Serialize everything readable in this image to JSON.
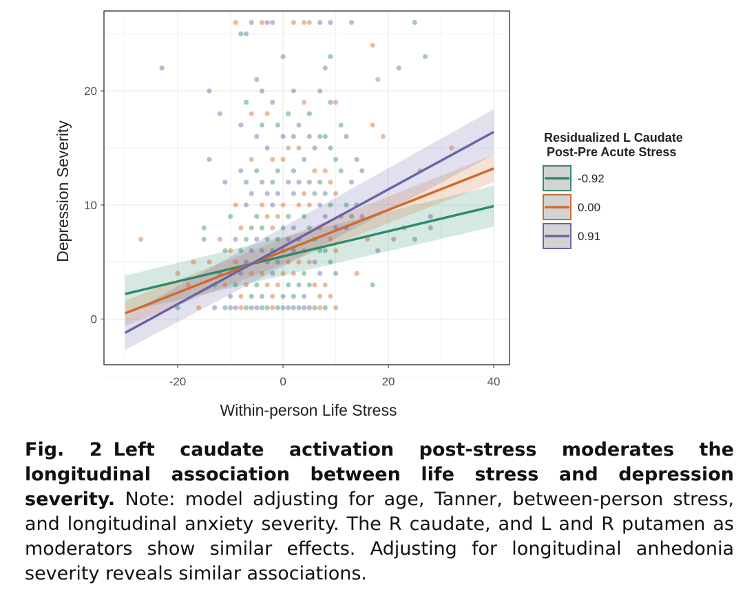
{
  "chart_data": {
    "type": "scatter",
    "xlabel": "Within-person Life Stress",
    "ylabel": "Depression Severity",
    "xlim": [
      -34,
      43
    ],
    "ylim": [
      -4,
      27
    ],
    "xticks": [
      -20,
      0,
      20,
      40
    ],
    "yticks": [
      0,
      10,
      20
    ],
    "grid": true,
    "legend": {
      "title_line1": "Residualized L Caudate",
      "title_line2": "Post-Pre Acute Stress",
      "placement": "right"
    },
    "series": [
      {
        "name": "-0.92",
        "color": "#2e8b6a",
        "x": [
          -30,
          40
        ],
        "y": [
          2.2,
          9.9
        ],
        "ci_low": [
          0.6,
          8.1
        ],
        "ci_high": [
          3.8,
          11.7
        ]
      },
      {
        "name": "0.00",
        "color": "#d06a2c",
        "x": [
          -30,
          40
        ],
        "y": [
          0.5,
          13.2
        ],
        "ci_low": [
          -0.6,
          12.0
        ],
        "ci_high": [
          1.6,
          14.4
        ]
      },
      {
        "name": "0.91",
        "color": "#6b63a8",
        "x": [
          -30,
          40
        ],
        "y": [
          -1.2,
          16.4
        ],
        "ci_low": [
          -2.7,
          14.4
        ],
        "ci_high": [
          0.3,
          18.4
        ]
      }
    ],
    "points": [
      [
        -27,
        7
      ],
      [
        -23,
        22
      ],
      [
        -20,
        1
      ],
      [
        -20,
        4
      ],
      [
        -18,
        3
      ],
      [
        -17,
        5
      ],
      [
        -16,
        1
      ],
      [
        -15,
        8
      ],
      [
        -15,
        7
      ],
      [
        -14,
        20
      ],
      [
        -14,
        14
      ],
      [
        -14,
        5
      ],
      [
        -13,
        3
      ],
      [
        -13,
        1
      ],
      [
        -12,
        18
      ],
      [
        -12,
        7
      ],
      [
        -12,
        4
      ],
      [
        -11,
        12
      ],
      [
        -11,
        6
      ],
      [
        -11,
        3
      ],
      [
        -11,
        1
      ],
      [
        -10,
        9
      ],
      [
        -10,
        6
      ],
      [
        -10,
        4
      ],
      [
        -10,
        2
      ],
      [
        -10,
        1
      ],
      [
        -9,
        26
      ],
      [
        -9,
        10
      ],
      [
        -9,
        7
      ],
      [
        -9,
        5
      ],
      [
        -9,
        3
      ],
      [
        -9,
        1
      ],
      [
        -8,
        25
      ],
      [
        -8,
        17
      ],
      [
        -8,
        13
      ],
      [
        -8,
        8
      ],
      [
        -8,
        6
      ],
      [
        -8,
        4
      ],
      [
        -8,
        2
      ],
      [
        -8,
        1
      ],
      [
        -7,
        25
      ],
      [
        -7,
        19
      ],
      [
        -7,
        12
      ],
      [
        -7,
        10
      ],
      [
        -7,
        7
      ],
      [
        -7,
        5
      ],
      [
        -7,
        3
      ],
      [
        -7,
        1
      ],
      [
        -6,
        26
      ],
      [
        -6,
        18
      ],
      [
        -6,
        14
      ],
      [
        -6,
        11
      ],
      [
        -6,
        8
      ],
      [
        -6,
        6
      ],
      [
        -6,
        4
      ],
      [
        -6,
        2
      ],
      [
        -6,
        1
      ],
      [
        -5,
        21
      ],
      [
        -5,
        16
      ],
      [
        -5,
        13
      ],
      [
        -5,
        9
      ],
      [
        -5,
        7
      ],
      [
        -5,
        5
      ],
      [
        -5,
        3
      ],
      [
        -5,
        1
      ],
      [
        -4,
        26
      ],
      [
        -4,
        20
      ],
      [
        -4,
        17
      ],
      [
        -4,
        12
      ],
      [
        -4,
        10
      ],
      [
        -4,
        8
      ],
      [
        -4,
        6
      ],
      [
        -4,
        4
      ],
      [
        -4,
        2
      ],
      [
        -4,
        1
      ],
      [
        -3,
        26
      ],
      [
        -3,
        18
      ],
      [
        -3,
        15
      ],
      [
        -3,
        11
      ],
      [
        -3,
        9
      ],
      [
        -3,
        7
      ],
      [
        -3,
        5
      ],
      [
        -3,
        3
      ],
      [
        -3,
        1
      ],
      [
        -2,
        26
      ],
      [
        -2,
        19
      ],
      [
        -2,
        14
      ],
      [
        -2,
        12
      ],
      [
        -2,
        10
      ],
      [
        -2,
        8
      ],
      [
        -2,
        6
      ],
      [
        -2,
        4
      ],
      [
        -2,
        2
      ],
      [
        -2,
        1
      ],
      [
        -1,
        17
      ],
      [
        -1,
        13
      ],
      [
        -1,
        11
      ],
      [
        -1,
        9
      ],
      [
        -1,
        7
      ],
      [
        -1,
        5
      ],
      [
        -1,
        3
      ],
      [
        -1,
        1
      ],
      [
        0,
        23
      ],
      [
        0,
        16
      ],
      [
        0,
        14
      ],
      [
        0,
        10
      ],
      [
        0,
        8
      ],
      [
        0,
        6
      ],
      [
        0,
        4
      ],
      [
        0,
        2
      ],
      [
        0,
        1
      ],
      [
        1,
        18
      ],
      [
        1,
        15
      ],
      [
        1,
        12
      ],
      [
        1,
        9
      ],
      [
        1,
        7
      ],
      [
        1,
        5
      ],
      [
        1,
        3
      ],
      [
        1,
        1
      ],
      [
        2,
        26
      ],
      [
        2,
        20
      ],
      [
        2,
        16
      ],
      [
        2,
        13
      ],
      [
        2,
        11
      ],
      [
        2,
        8
      ],
      [
        2,
        6
      ],
      [
        2,
        4
      ],
      [
        2,
        2
      ],
      [
        2,
        1
      ],
      [
        3,
        17
      ],
      [
        3,
        15
      ],
      [
        3,
        12
      ],
      [
        3,
        10
      ],
      [
        3,
        7
      ],
      [
        3,
        5
      ],
      [
        3,
        3
      ],
      [
        3,
        1
      ],
      [
        4,
        26
      ],
      [
        4,
        19
      ],
      [
        4,
        14
      ],
      [
        4,
        11
      ],
      [
        4,
        9
      ],
      [
        4,
        6
      ],
      [
        4,
        4
      ],
      [
        4,
        2
      ],
      [
        4,
        1
      ],
      [
        5,
        26
      ],
      [
        5,
        18
      ],
      [
        5,
        16
      ],
      [
        5,
        12
      ],
      [
        5,
        10
      ],
      [
        5,
        8
      ],
      [
        5,
        5
      ],
      [
        5,
        3
      ],
      [
        5,
        1
      ],
      [
        6,
        15
      ],
      [
        6,
        13
      ],
      [
        6,
        11
      ],
      [
        6,
        7
      ],
      [
        6,
        5
      ],
      [
        6,
        3
      ],
      [
        6,
        1
      ],
      [
        7,
        26
      ],
      [
        7,
        20
      ],
      [
        7,
        16
      ],
      [
        7,
        12
      ],
      [
        7,
        10
      ],
      [
        7,
        8
      ],
      [
        7,
        6
      ],
      [
        7,
        4
      ],
      [
        7,
        2
      ],
      [
        7,
        1
      ],
      [
        8,
        22
      ],
      [
        8,
        16
      ],
      [
        8,
        13
      ],
      [
        8,
        11
      ],
      [
        8,
        9
      ],
      [
        8,
        6
      ],
      [
        8,
        3
      ],
      [
        8,
        1
      ],
      [
        9,
        26
      ],
      [
        9,
        23
      ],
      [
        9,
        19
      ],
      [
        9,
        15
      ],
      [
        9,
        12
      ],
      [
        9,
        10
      ],
      [
        9,
        7
      ],
      [
        9,
        5
      ],
      [
        9,
        2
      ],
      [
        10,
        19
      ],
      [
        10,
        14
      ],
      [
        10,
        11
      ],
      [
        10,
        8
      ],
      [
        10,
        6
      ],
      [
        10,
        4
      ],
      [
        10,
        1
      ],
      [
        11,
        17
      ],
      [
        11,
        13
      ],
      [
        11,
        9
      ],
      [
        12,
        16
      ],
      [
        12,
        10
      ],
      [
        12,
        8
      ],
      [
        13,
        26
      ],
      [
        13,
        12
      ],
      [
        13,
        9
      ],
      [
        14,
        14
      ],
      [
        14,
        10
      ],
      [
        14,
        4
      ],
      [
        15,
        13
      ],
      [
        15,
        9
      ],
      [
        16,
        7
      ],
      [
        17,
        24
      ],
      [
        17,
        17
      ],
      [
        17,
        3
      ],
      [
        18,
        21
      ],
      [
        18,
        6
      ],
      [
        19,
        16
      ],
      [
        21,
        7
      ],
      [
        22,
        22
      ],
      [
        23,
        8
      ],
      [
        25,
        26
      ],
      [
        25,
        7
      ],
      [
        26,
        13
      ],
      [
        27,
        23
      ],
      [
        28,
        9
      ],
      [
        28,
        8
      ],
      [
        32,
        15
      ]
    ]
  },
  "caption": {
    "label": "Fig. 2",
    "title": "Left caudate activation post-stress moderates the longitudinal association between life stress and depression severity.",
    "note": "Note: model adjusting for age, Tanner, between-person stress, and longitudinal anxiety severity. The R caudate, and L and R putamen as moderators show similar effects. Adjusting for longitudinal anhedonia severity reveals similar associations."
  }
}
